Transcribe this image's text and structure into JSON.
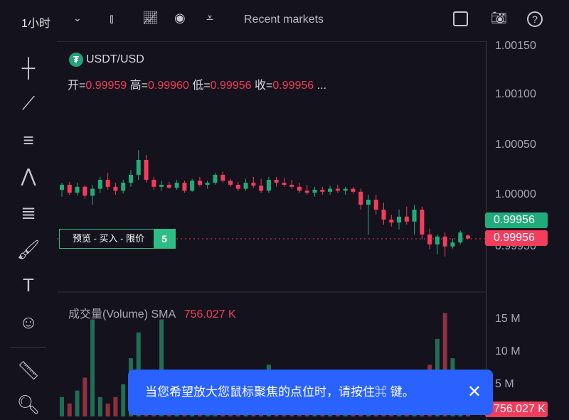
{
  "toolbar": {
    "timeframe": "1小时",
    "recent_markets": "Recent markets"
  },
  "symbol": {
    "name": "USDT/USD",
    "open_label": "开=",
    "open": "0.99959",
    "high_label": "高=",
    "high": "0.99960",
    "low_label": "低=",
    "low": "0.99956",
    "close_label": "收=",
    "close": "0.99956",
    "more": "..."
  },
  "price_axis": {
    "labels": [
      "1.00150",
      "1.00100",
      "1.00050",
      "1.00000",
      "0.99950"
    ],
    "ask_tag": "0.99956",
    "bid_tag": "0.99956"
  },
  "volume_axis": {
    "labels": [
      "15 M",
      "10 M",
      "5 M"
    ],
    "tag": "756.027 K"
  },
  "order_preview": {
    "label": "预览 - 买入 - 限价",
    "qty": "5"
  },
  "volume_legend": {
    "label": "成交量(Volume) SMA",
    "value": "756.027 K"
  },
  "toast": {
    "text": "当您希望放大您鼠标聚焦的点位时，请按住⌘ 键。"
  },
  "colors": {
    "up": "#22ab7a",
    "down": "#f23d5c",
    "accent": "#2962ff"
  },
  "chart_data": {
    "type": "candlestick",
    "price_range": [
      0.9993,
      1.0016
    ],
    "ohlc": [
      [
        1.00005,
        1.00012,
        0.99998,
        1.0001
      ],
      [
        1.0001,
        1.00013,
        1.0,
        1.00002
      ],
      [
        1.00002,
        1.00012,
        0.99999,
        1.00008
      ],
      [
        1.00008,
        1.0001,
        0.99996,
        0.99999
      ],
      [
        0.99999,
        1.0001,
        0.9999,
        1.00006
      ],
      [
        1.00006,
        1.00018,
        1.00002,
        1.00015
      ],
      [
        1.00015,
        1.00022,
        1.00005,
        1.00008
      ],
      [
        1.00008,
        1.00012,
        1.0,
        1.00004
      ],
      [
        1.00004,
        1.00015,
        1.00001,
        1.00012
      ],
      [
        1.00012,
        1.00025,
        1.00008,
        1.0002
      ],
      [
        1.0002,
        1.00045,
        1.00015,
        1.00035
      ],
      [
        1.00035,
        1.0004,
        1.00012,
        1.00015
      ],
      [
        1.00015,
        1.00018,
        1.00005,
        1.00008
      ],
      [
        1.00008,
        1.00014,
        1.00004,
        1.0001
      ],
      [
        1.0001,
        1.00013,
        1.00006,
        1.00007
      ],
      [
        1.00007,
        1.00015,
        1.00005,
        1.00012
      ],
      [
        1.00012,
        1.00014,
        1.00002,
        1.00004
      ],
      [
        1.00004,
        1.00016,
        1.00003,
        1.00014
      ],
      [
        1.00014,
        1.00018,
        1.00008,
        1.0001
      ],
      [
        1.0001,
        1.00014,
        1.00006,
        1.00012
      ],
      [
        1.00012,
        1.00022,
        1.0001,
        1.0002
      ],
      [
        1.0002,
        1.00023,
        1.00012,
        1.00014
      ],
      [
        1.00014,
        1.00016,
        1.00008,
        1.0001
      ],
      [
        1.0001,
        1.00013,
        1.00004,
        1.00006
      ],
      [
        1.00006,
        1.00016,
        1.00004,
        1.00012
      ],
      [
        1.00012,
        1.00018,
        1.00007,
        1.00009
      ],
      [
        1.00009,
        1.00016,
        1.00002,
        1.00004
      ],
      [
        1.00004,
        1.00018,
        1.00002,
        1.00015
      ],
      [
        1.00015,
        1.00018,
        1.00008,
        1.00012
      ],
      [
        1.00012,
        1.00017,
        1.00008,
        1.0001
      ],
      [
        1.0001,
        1.00015,
        1.00006,
        1.00008
      ],
      [
        1.00008,
        1.00012,
        1.00002,
        1.00004
      ],
      [
        1.00004,
        1.0001,
        1.0,
        1.00002
      ],
      [
        1.00002,
        1.00008,
        0.99998,
        1.00005
      ],
      [
        1.00005,
        1.00008,
        1.0,
        1.00003
      ],
      [
        1.00003,
        1.00009,
        1.0,
        1.00006
      ],
      [
        1.00006,
        1.0001,
        1.00002,
        1.00004
      ],
      [
        1.00004,
        1.00008,
        1.0,
        1.00006
      ],
      [
        1.00006,
        1.00008,
        1.00001,
        1.00003
      ],
      [
        1.00003,
        1.00006,
        0.99985,
        0.9999
      ],
      [
        0.9999,
        1.0,
        0.9996,
        0.99995
      ],
      [
        0.99995,
        1.0,
        0.9998,
        0.99985
      ],
      [
        0.99985,
        0.99992,
        0.9997,
        0.99975
      ],
      [
        0.99975,
        0.9998,
        0.99968,
        0.99972
      ],
      [
        0.99972,
        0.99985,
        0.99965,
        0.99978
      ],
      [
        0.99978,
        0.99988,
        0.9997,
        0.99973
      ],
      [
        0.99973,
        0.9999,
        0.9996,
        0.99985
      ],
      [
        0.99985,
        0.99988,
        0.99955,
        0.9996
      ],
      [
        0.9996,
        0.99966,
        0.99945,
        0.9995
      ],
      [
        0.9995,
        0.9996,
        0.9994,
        0.99958
      ],
      [
        0.99958,
        0.99962,
        0.99938,
        0.99948
      ],
      [
        0.99948,
        0.99956,
        0.99946,
        0.99952
      ],
      [
        0.99952,
        0.99964,
        0.9995,
        0.99962
      ],
      [
        0.99959,
        0.9996,
        0.99956,
        0.99956
      ]
    ],
    "volume_m": [
      3,
      2,
      4,
      6,
      15,
      3,
      2,
      3,
      5,
      9,
      13,
      4,
      2,
      15,
      6,
      3,
      2,
      4,
      3,
      2,
      3,
      7,
      4,
      3,
      2,
      5,
      3,
      8,
      2,
      3,
      4,
      2,
      3,
      2,
      3,
      4,
      2,
      3,
      2,
      5,
      4,
      3,
      2,
      3,
      6,
      4,
      3,
      5,
      8,
      12,
      16,
      9,
      6,
      3
    ]
  }
}
